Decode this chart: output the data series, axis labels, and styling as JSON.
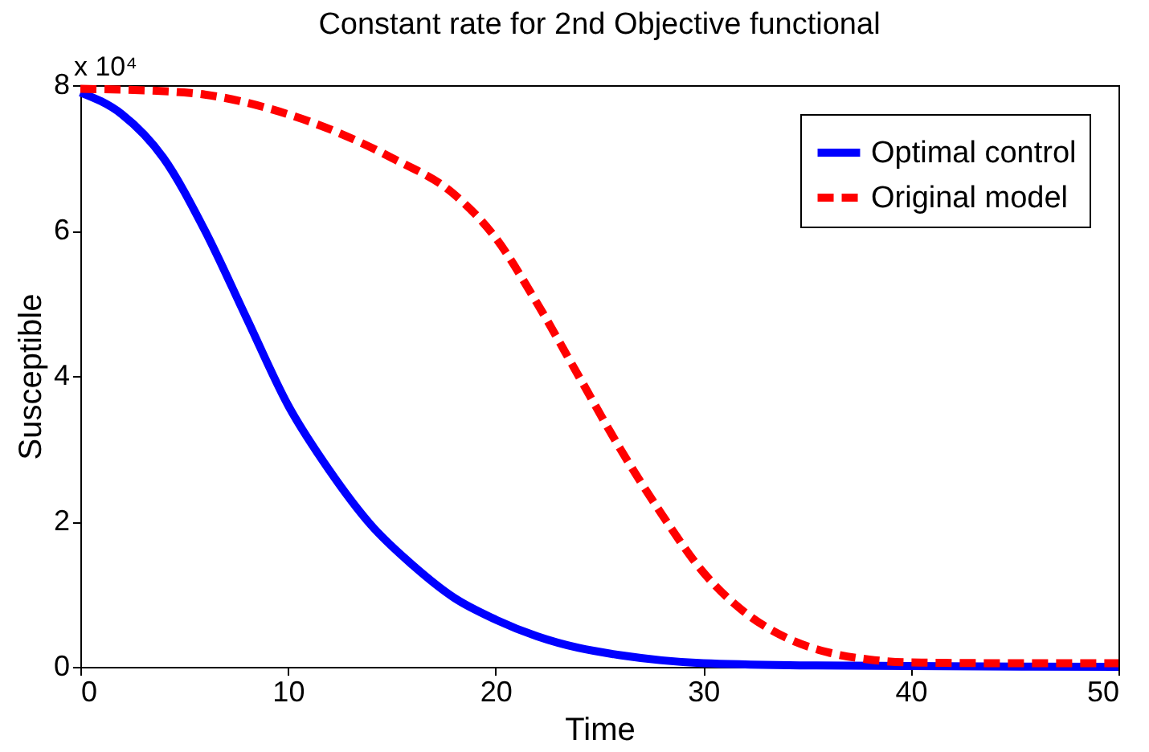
{
  "chart_data": {
    "type": "line",
    "title": "Constant rate for 2nd Objective functional",
    "xlabel": "Time",
    "ylabel": "Susceptible",
    "annotations": [
      "x 10⁴"
    ],
    "xlim": [
      0,
      50
    ],
    "ylim": [
      0,
      8
    ],
    "xticks": [
      0,
      10,
      20,
      30,
      40,
      50
    ],
    "yticks": [
      0,
      2,
      4,
      6,
      8
    ],
    "legend": "top right",
    "grid": false,
    "series": [
      {
        "name": "Optimal control",
        "color": "#0000ff",
        "line_style": "solid",
        "x": [
          0,
          2,
          4,
          6,
          8,
          10,
          12,
          14,
          16,
          18,
          20,
          22,
          24,
          26,
          28,
          30,
          35,
          40,
          50
        ],
        "values": [
          7.9,
          7.6,
          7.0,
          6.0,
          4.8,
          3.6,
          2.7,
          1.95,
          1.4,
          0.95,
          0.65,
          0.42,
          0.26,
          0.16,
          0.09,
          0.05,
          0.02,
          0.01,
          0
        ]
      },
      {
        "name": "Original model",
        "color": "#ff0000",
        "line_style": "dashed",
        "x": [
          0,
          5,
          10,
          15,
          18,
          20,
          22,
          24,
          26,
          28,
          30,
          32,
          34,
          36,
          38,
          40,
          45,
          50
        ],
        "values": [
          7.95,
          7.9,
          7.6,
          7.0,
          6.5,
          5.9,
          5.0,
          4.0,
          3.0,
          2.1,
          1.3,
          0.75,
          0.4,
          0.2,
          0.1,
          0.06,
          0.05,
          0.05
        ]
      }
    ]
  }
}
